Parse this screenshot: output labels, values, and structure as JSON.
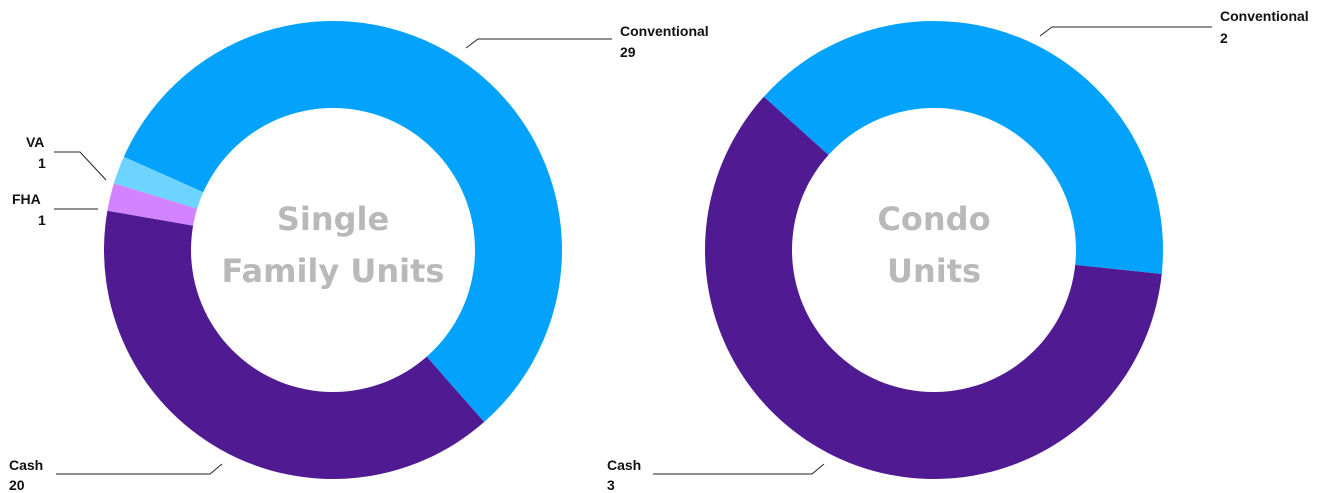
{
  "chart_data": [
    {
      "type": "donut",
      "title_lines": [
        "Single",
        "Family Units"
      ],
      "slices": [
        {
          "label": "Conventional",
          "value": 29,
          "color": "#03a2fc"
        },
        {
          "label": "Cash",
          "value": 20,
          "color": "#501b92"
        },
        {
          "label": "FHA",
          "value": 1,
          "color": "#d483ff"
        },
        {
          "label": "VA",
          "value": 1,
          "color": "#6dd4ff"
        }
      ]
    },
    {
      "type": "donut",
      "title_lines": [
        "Condo",
        "Units"
      ],
      "slices": [
        {
          "label": "Conventional",
          "value": 2,
          "color": "#03a2fc"
        },
        {
          "label": "Cash",
          "value": 3,
          "color": "#501b92"
        }
      ]
    }
  ]
}
